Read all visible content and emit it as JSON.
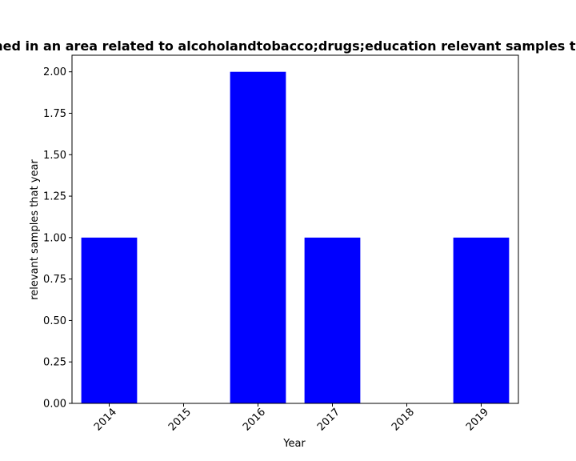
{
  "chart_data": {
    "type": "bar",
    "title": "Number of papers published in an area related to alcoholandtobacco;drugs;education relevant samples that year in pre-registration",
    "xlabel": "Year",
    "ylabel": "relevant samples that year",
    "categories": [
      "2014",
      "2015",
      "2016",
      "2017",
      "2018",
      "2019"
    ],
    "values": [
      1,
      0,
      2,
      1,
      0,
      1
    ],
    "ylim": [
      0,
      2.1
    ],
    "yticks": [
      "0.00",
      "0.25",
      "0.50",
      "0.75",
      "1.00",
      "1.25",
      "1.50",
      "1.75",
      "2.00"
    ],
    "bar_color": "#0000ff",
    "grid": false
  }
}
